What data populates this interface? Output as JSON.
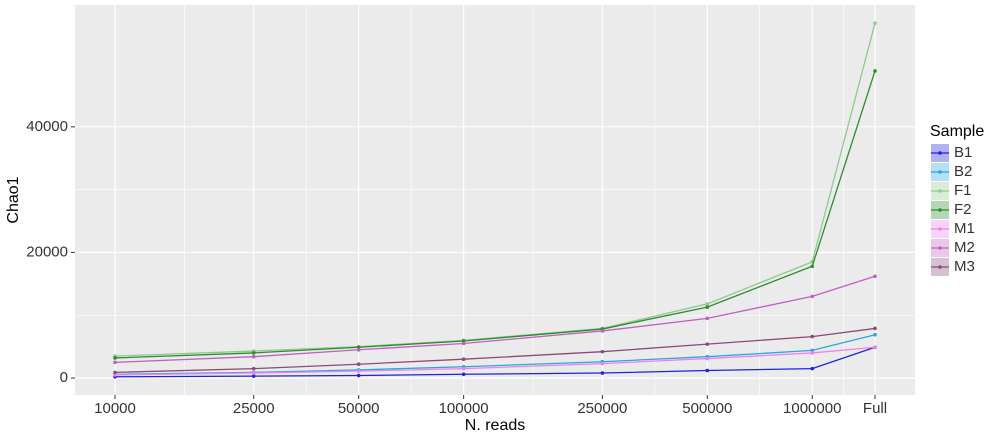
{
  "chart_data": {
    "type": "line",
    "x_label": "N. reads",
    "y_label": "Chao1",
    "legend_title": "Sample",
    "categories": [
      "10000",
      "25000",
      "50000",
      "100000",
      "250000",
      "500000",
      "1000000",
      "Full"
    ],
    "series": [
      {
        "name": "B1",
        "color": "#2222dd",
        "values": [
          200,
          300,
          400,
          600,
          800,
          1200,
          1500,
          4900
        ]
      },
      {
        "name": "B2",
        "color": "#2aa6e0",
        "values": [
          600,
          900,
          1300,
          1800,
          2600,
          3400,
          4400,
          6900
        ]
      },
      {
        "name": "F1",
        "color": "#8fc98f",
        "values": [
          3500,
          4300,
          5000,
          6000,
          7900,
          11800,
          18500,
          56500
        ]
      },
      {
        "name": "F2",
        "color": "#2e8b2e",
        "values": [
          3200,
          4000,
          4900,
          5900,
          7800,
          11300,
          17800,
          48900
        ]
      },
      {
        "name": "M1",
        "color": "#ee82ee",
        "values": [
          500,
          800,
          1100,
          1500,
          2300,
          3100,
          4000,
          4900
        ]
      },
      {
        "name": "M2",
        "color": "#c060c0",
        "values": [
          2500,
          3400,
          4500,
          5500,
          7500,
          9500,
          13000,
          16200
        ]
      },
      {
        "name": "M3",
        "color": "#8b4a7a",
        "values": [
          900,
          1500,
          2200,
          3000,
          4200,
          5400,
          6600,
          7900
        ]
      }
    ],
    "ylim": [
      -2700,
      59400
    ],
    "yticks": [
      0,
      20000,
      40000
    ],
    "grid": true,
    "legend": "right"
  }
}
